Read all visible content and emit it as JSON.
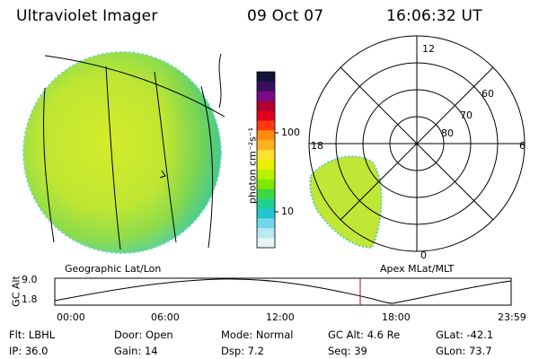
{
  "header": {
    "title": "Ultraviolet Imager",
    "date": "09 Oct 07",
    "time": "16:06:32 UT"
  },
  "colorbar": {
    "unit_label": "photon cm⁻²s⁻¹",
    "ticks": [
      "100",
      "10"
    ],
    "colors": [
      "#14143a",
      "#3a0f5e",
      "#7a0a8a",
      "#b00030",
      "#e00020",
      "#ff3a10",
      "#ff8a10",
      "#ffb020",
      "#ffe030",
      "#e8f000",
      "#b8f000",
      "#80e800",
      "#40d840",
      "#20d090",
      "#20c8d0",
      "#70d8e8",
      "#b8e8f0",
      "#e6f2f4"
    ]
  },
  "left_panel": {
    "label": "Geographic Lat/Lon"
  },
  "right_panel": {
    "label": "Apex MLat/MLT",
    "mlt_labels": [
      "12",
      "18",
      "6",
      "0"
    ],
    "lat_labels": [
      "60",
      "70",
      "80"
    ]
  },
  "altitude_plot": {
    "ylabel": "GC Alt",
    "y_ticks": [
      "9.0",
      "1.8"
    ],
    "x_ticks": [
      "00:00",
      "06:00",
      "12:00",
      "18:00",
      "23:59"
    ],
    "marker_color": "#cc0000"
  },
  "info": {
    "filter": "Flt: LBHL",
    "ip": "IP: 36.0",
    "door": "Door: Open",
    "gain": "Gain: 14",
    "mode": "Mode:  Normal",
    "dsp": "Dsp:     7.2",
    "gc_alt": "GC Alt: 4.6 Re",
    "seq": "Seq: 39",
    "glat": "GLat:  -42.1",
    "glon": "GLon:   73.7"
  }
}
